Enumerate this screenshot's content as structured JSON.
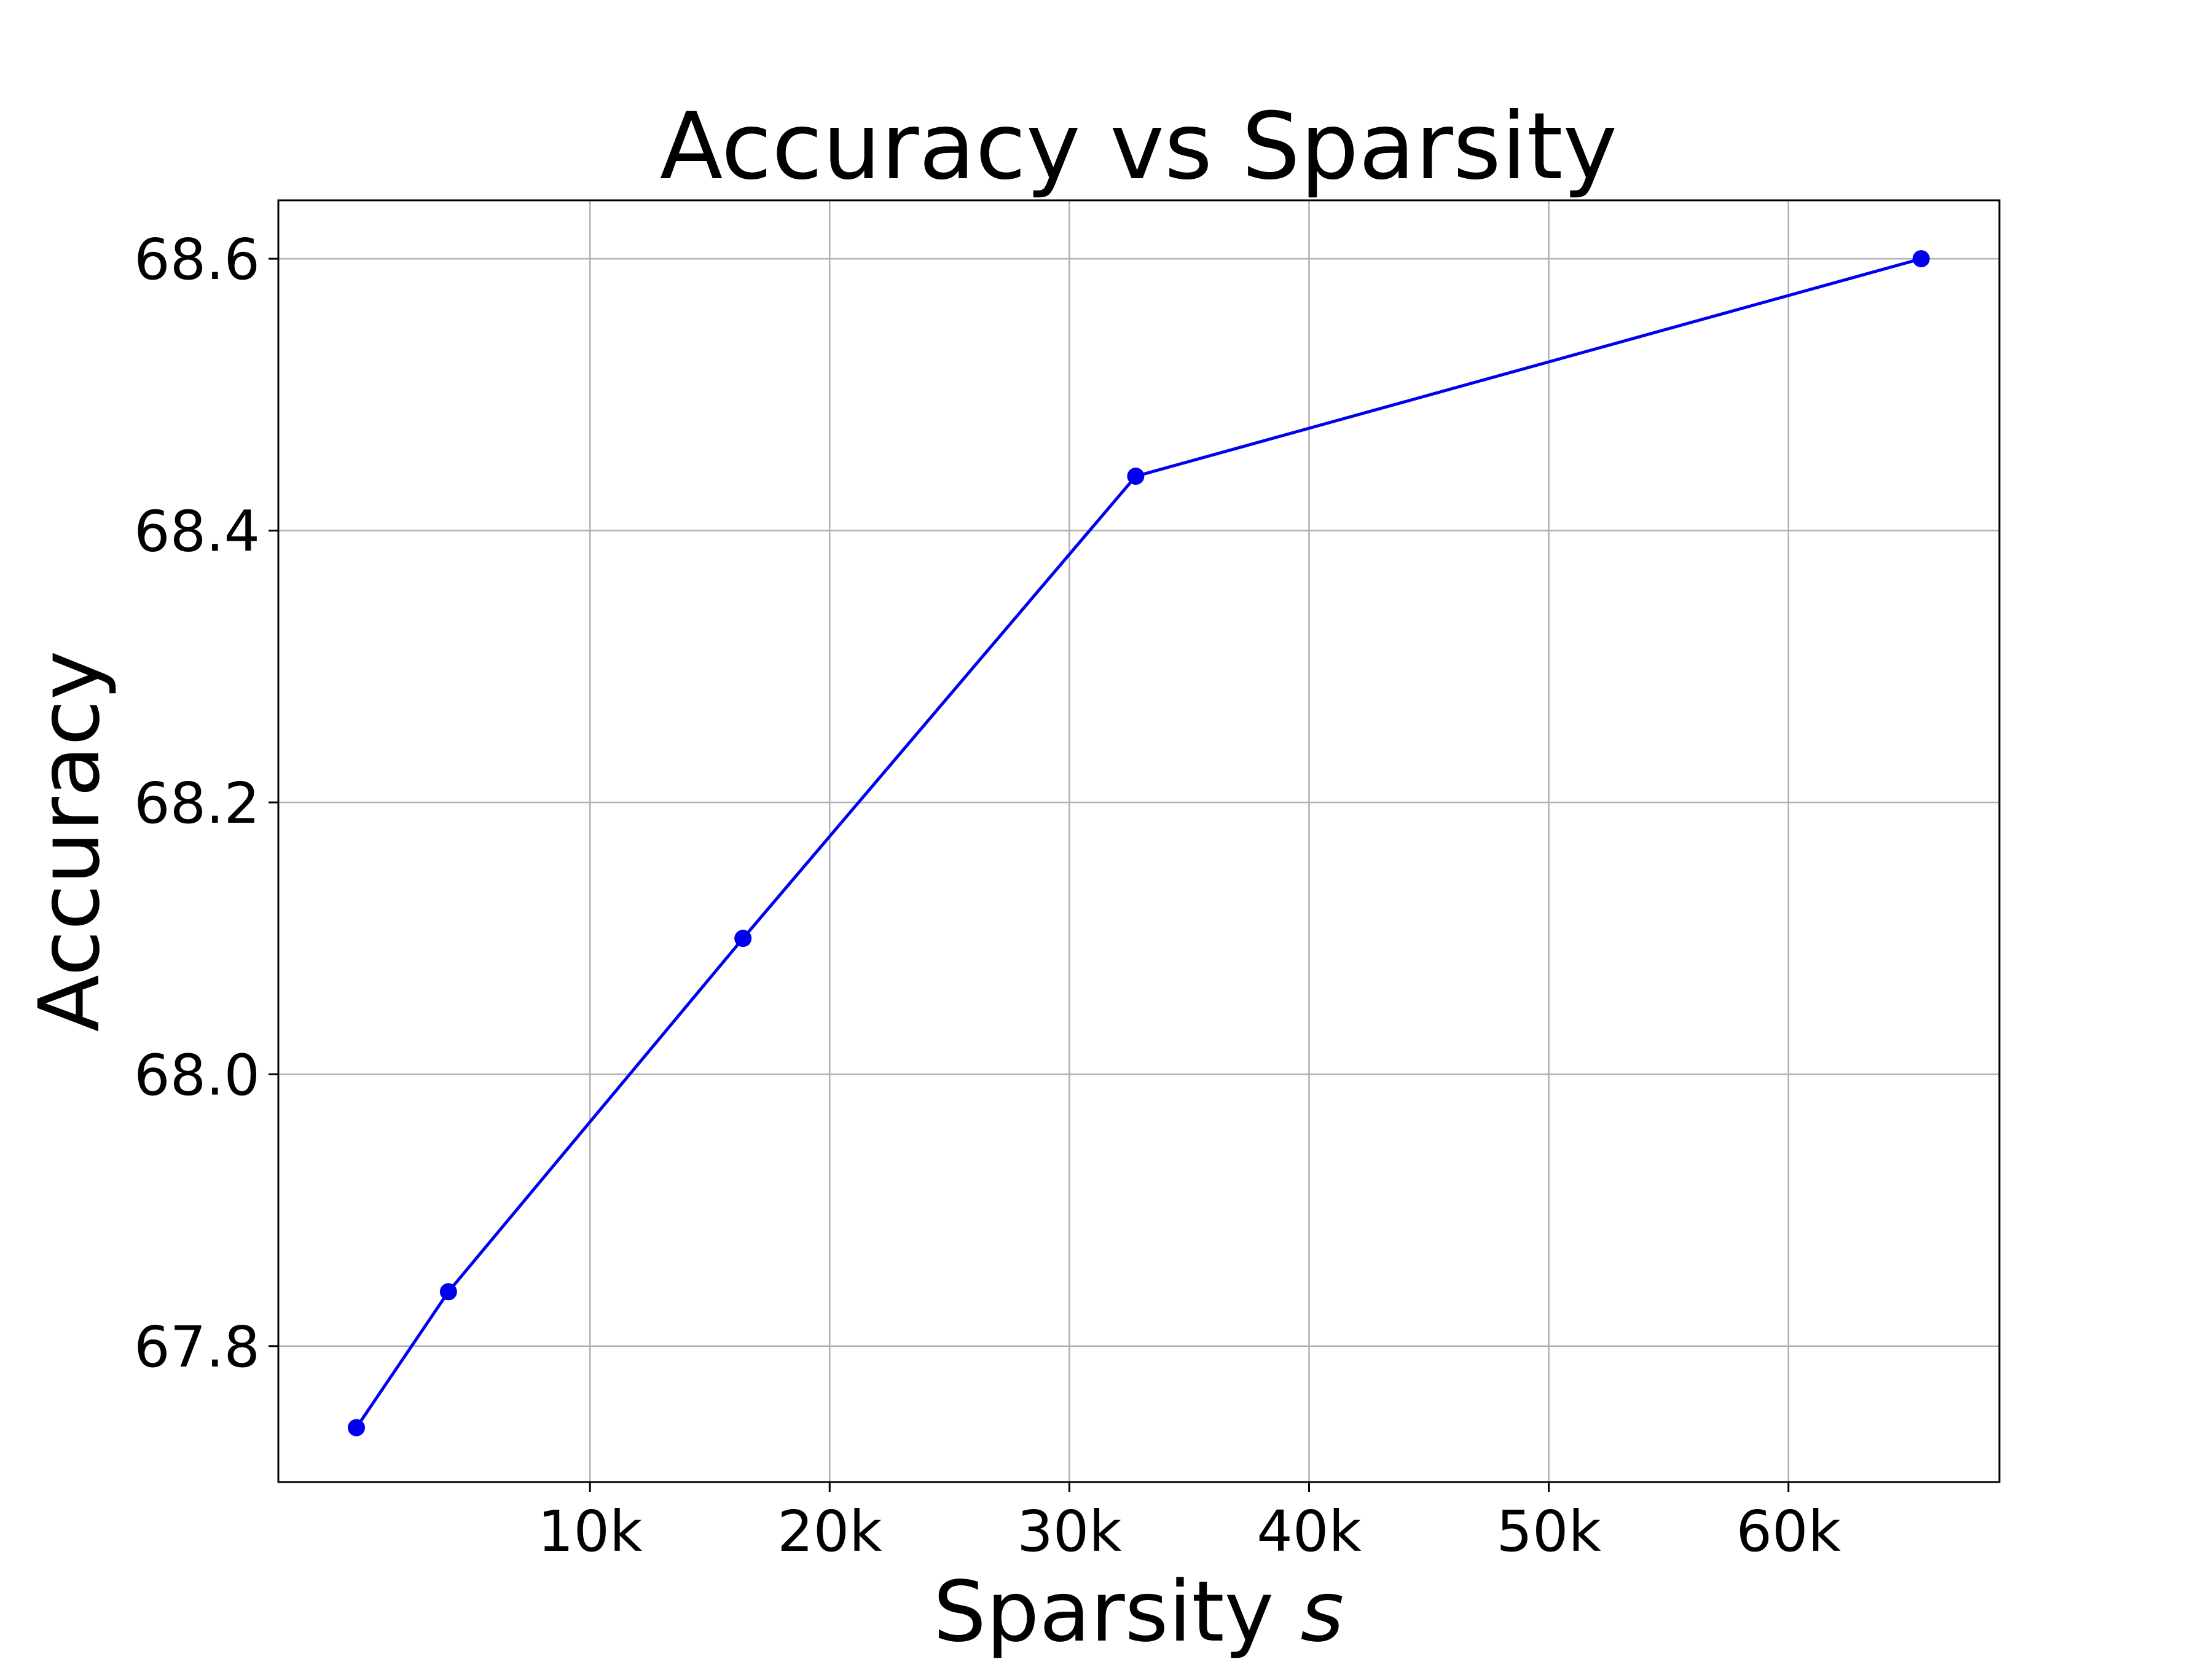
{
  "chart_data": {
    "type": "line",
    "title": "Accuracy vs Sparsity",
    "xlabel": "Sparsity",
    "xlabel_var": "s",
    "ylabel": "Accuracy",
    "x": [
      256,
      4096,
      16384,
      32768,
      65536
    ],
    "series": [
      {
        "values": [
          67.74,
          67.84,
          68.1,
          68.44,
          68.6
        ]
      }
    ],
    "xlim": [
      -3000,
      68800
    ],
    "ylim": [
      67.7,
      68.643
    ],
    "xticks": [
      10000,
      20000,
      30000,
      40000,
      50000,
      60000
    ],
    "xtick_labels": [
      "10k",
      "20k",
      "30k",
      "40k",
      "50k",
      "60k"
    ],
    "yticks": [
      67.8,
      68.0,
      68.2,
      68.4,
      68.6
    ],
    "ytick_labels": [
      "67.8",
      "68.0",
      "68.2",
      "68.4",
      "68.6"
    ],
    "grid": true,
    "line_color": "#0000ee",
    "marker": "circle"
  }
}
